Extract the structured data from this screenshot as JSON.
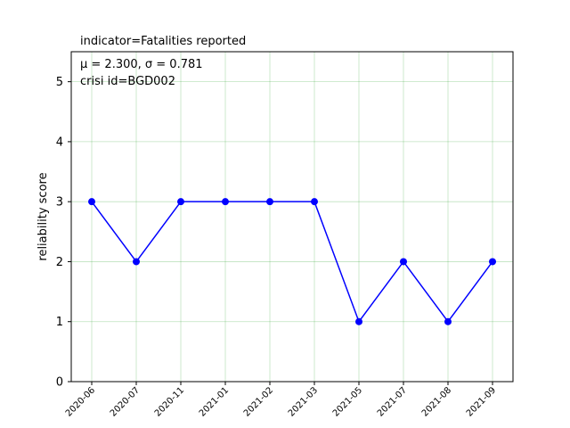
{
  "chart_data": {
    "type": "line",
    "title": "indicator=Fatalities reported",
    "xlabel": "",
    "ylabel": "reliability score",
    "categories": [
      "2020-06",
      "2020-07",
      "2020-11",
      "2021-01",
      "2021-02",
      "2021-03",
      "2021-05",
      "2021-07",
      "2021-08",
      "2021-09"
    ],
    "series": [
      {
        "values": [
          3,
          2,
          3,
          3,
          3,
          3,
          1,
          2,
          1,
          2
        ],
        "color": "#0000ff"
      }
    ],
    "ylim": [
      0,
      5.5
    ],
    "yticks": [
      "0",
      "1",
      "2",
      "3",
      "4",
      "5"
    ],
    "annotations": [
      "μ = 2.300,  σ = 0.781",
      "crisi id=BGD002"
    ],
    "grid": true,
    "grid_color": "#2ca02c",
    "marker": "circle",
    "legend": "none"
  }
}
